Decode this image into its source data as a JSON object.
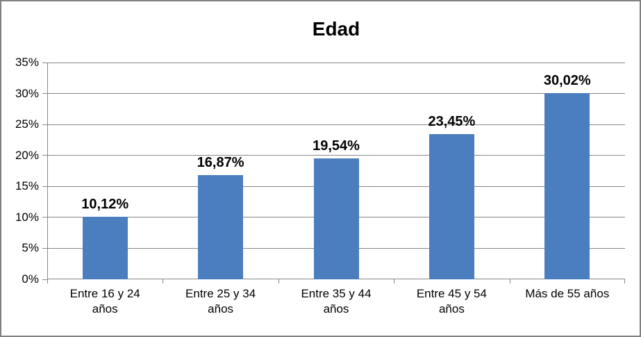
{
  "chart_data": {
    "type": "bar",
    "title": "Edad",
    "categories": [
      "Entre 16 y 24 años",
      "Entre 25 y 34 años",
      "Entre 35 y 44 años",
      "Entre 45 y 54 años",
      "Más de 55 años"
    ],
    "values": [
      10.12,
      16.87,
      19.54,
      23.45,
      30.02
    ],
    "value_labels": [
      "10,12%",
      "16,87%",
      "19,54%",
      "23,45%",
      "30,02%"
    ],
    "xlabel": "",
    "ylabel": "",
    "ylim": [
      0,
      35
    ],
    "y_tick_values": [
      0,
      5,
      10,
      15,
      20,
      25,
      30,
      35
    ],
    "y_tick_labels": [
      "0%",
      "5%",
      "10%",
      "15%",
      "20%",
      "25%",
      "30%",
      "35%"
    ],
    "grid": true,
    "legend": false,
    "colors": {
      "bar": "#4A7EBE",
      "gridline": "#878787",
      "axis": "#878787",
      "frame_border": "#808080",
      "text": "#000000",
      "background": "#FFFFFF"
    }
  }
}
